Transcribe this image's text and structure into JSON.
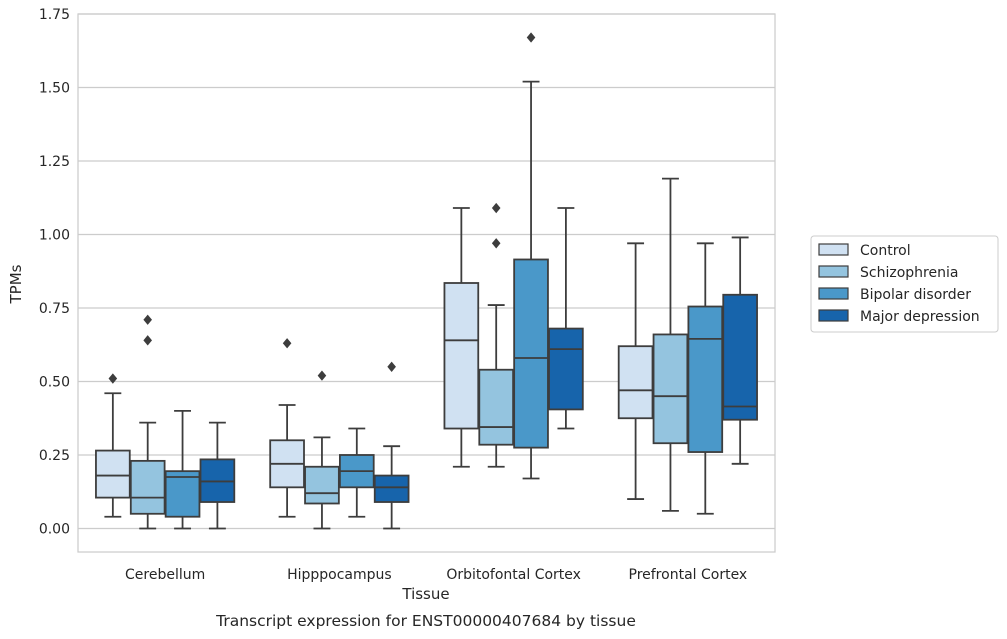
{
  "caption": "Transcript expression for ENST00000407684 by tissue",
  "chart_data": {
    "type": "box",
    "xlabel": "Tissue",
    "ylabel": "TPMs",
    "ylim": [
      -0.08,
      1.75
    ],
    "yticks": [
      "0.00",
      "0.25",
      "0.50",
      "0.75",
      "1.00",
      "1.25",
      "1.50",
      "1.75"
    ],
    "categories": [
      "Cerebellum",
      "Hipppocampus",
      "Orbitofontal Cortex",
      "Prefrontal Cortex"
    ],
    "grid": "horizontal",
    "legend_position": "outside-right",
    "series": [
      {
        "name": "Control",
        "color": "#d0e1f2",
        "boxes": [
          {
            "whislo": 0.04,
            "q1": 0.105,
            "median": 0.18,
            "q3": 0.265,
            "whishi": 0.46,
            "fliers": [
              0.51
            ]
          },
          {
            "whislo": 0.04,
            "q1": 0.14,
            "median": 0.22,
            "q3": 0.3,
            "whishi": 0.42,
            "fliers": [
              0.63
            ]
          },
          {
            "whislo": 0.21,
            "q1": 0.34,
            "median": 0.64,
            "q3": 0.835,
            "whishi": 1.09,
            "fliers": []
          },
          {
            "whislo": 0.1,
            "q1": 0.375,
            "median": 0.47,
            "q3": 0.62,
            "whishi": 0.97,
            "fliers": []
          }
        ]
      },
      {
        "name": "Schizophrenia",
        "color": "#94c4df",
        "boxes": [
          {
            "whislo": 0.0,
            "q1": 0.05,
            "median": 0.105,
            "q3": 0.23,
            "whishi": 0.36,
            "fliers": [
              0.64,
              0.71
            ]
          },
          {
            "whislo": 0.0,
            "q1": 0.085,
            "median": 0.12,
            "q3": 0.21,
            "whishi": 0.31,
            "fliers": [
              0.52
            ]
          },
          {
            "whislo": 0.21,
            "q1": 0.285,
            "median": 0.345,
            "q3": 0.54,
            "whishi": 0.76,
            "fliers": [
              0.97,
              1.09
            ]
          },
          {
            "whislo": 0.06,
            "q1": 0.29,
            "median": 0.45,
            "q3": 0.66,
            "whishi": 1.19,
            "fliers": []
          }
        ]
      },
      {
        "name": "Bipolar disorder",
        "color": "#4a98c9",
        "boxes": [
          {
            "whislo": 0.0,
            "q1": 0.04,
            "median": 0.175,
            "q3": 0.195,
            "whishi": 0.4,
            "fliers": []
          },
          {
            "whislo": 0.04,
            "q1": 0.14,
            "median": 0.195,
            "q3": 0.25,
            "whishi": 0.34,
            "fliers": []
          },
          {
            "whislo": 0.17,
            "q1": 0.275,
            "median": 0.58,
            "q3": 0.915,
            "whishi": 1.52,
            "fliers": [
              1.67
            ]
          },
          {
            "whislo": 0.05,
            "q1": 0.26,
            "median": 0.645,
            "q3": 0.755,
            "whishi": 0.97,
            "fliers": []
          }
        ]
      },
      {
        "name": "Major depression",
        "color": "#1764ab",
        "boxes": [
          {
            "whislo": 0.0,
            "q1": 0.09,
            "median": 0.16,
            "q3": 0.235,
            "whishi": 0.36,
            "fliers": []
          },
          {
            "whislo": 0.0,
            "q1": 0.09,
            "median": 0.14,
            "q3": 0.18,
            "whishi": 0.28,
            "fliers": [
              0.55
            ]
          },
          {
            "whislo": 0.34,
            "q1": 0.405,
            "median": 0.61,
            "q3": 0.68,
            "whishi": 1.09,
            "fliers": []
          },
          {
            "whislo": 0.22,
            "q1": 0.37,
            "median": 0.415,
            "q3": 0.795,
            "whishi": 0.99,
            "fliers": []
          }
        ]
      }
    ]
  }
}
